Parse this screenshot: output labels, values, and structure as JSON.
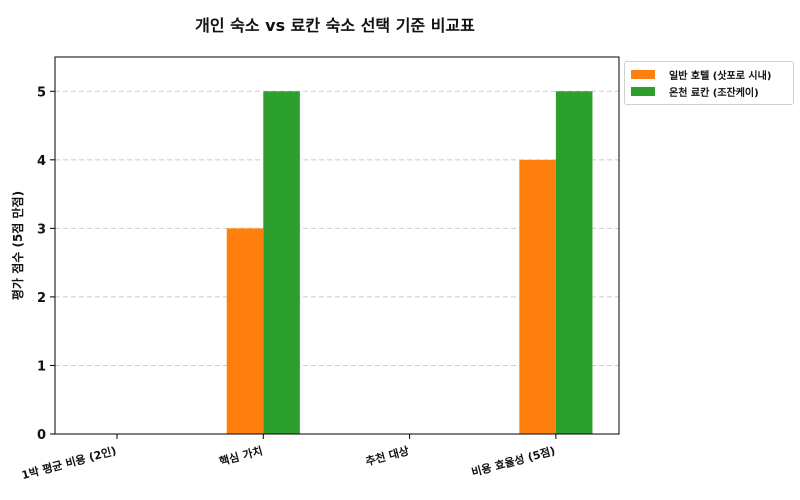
{
  "chart_data": {
    "type": "bar",
    "title": "개인 숙소 vs 료칸 숙소 선택 기준 비교표",
    "xlabel": "",
    "ylabel": "평가 점수 (5점 만점)",
    "categories": [
      "1박 평균 비용 (2인)",
      "핵심 가치",
      "추천 대상",
      "비용 효율성 (5점)"
    ],
    "series": [
      {
        "name": "일반 호텔 (삿포로 시내)",
        "color": "#ff7f0e",
        "values": [
          null,
          3,
          null,
          4
        ]
      },
      {
        "name": "온천 료칸 (조잔케이)",
        "color": "#2ca02c",
        "values": [
          null,
          5,
          null,
          5
        ]
      }
    ],
    "ylim": [
      0,
      5.5
    ],
    "yticks": [
      0,
      1,
      2,
      3,
      4,
      5
    ],
    "grid": "y dashed",
    "legend_position": "upper right outside"
  }
}
